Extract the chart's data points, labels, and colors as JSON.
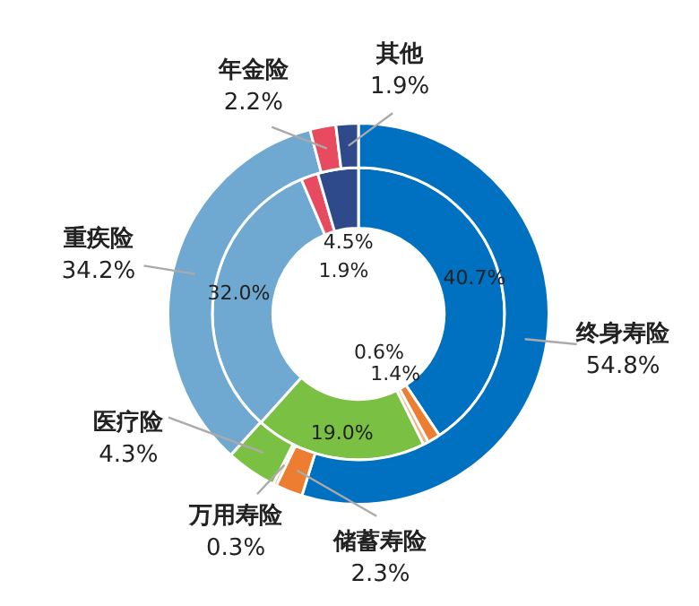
{
  "chart_data": {
    "type": "donut",
    "categories": [
      "终身寿险",
      "储蓄寿险",
      "万用寿险",
      "医疗险",
      "重疾险",
      "年金险",
      "其他"
    ],
    "colors": [
      "#0070c0",
      "#ed7d31",
      "#f4b183",
      "#7ac143",
      "#6fa8d0",
      "#e84a5f",
      "#2e4a8a"
    ],
    "series": [
      {
        "values": [
          54.8,
          2.3,
          0.3,
          4.3,
          34.2,
          2.2,
          1.9
        ],
        "value_labels": [
          "54.8%",
          "2.3%",
          "0.3%",
          "4.3%",
          "34.2%",
          "2.2%",
          "1.9%"
        ]
      },
      {
        "values": [
          40.7,
          1.4,
          0.6,
          19.0,
          32.0,
          1.9,
          4.5
        ],
        "value_labels": [
          "40.7%",
          "1.4%",
          "0.6%",
          "19.0%",
          "32.0%",
          "1.9%",
          "4.5%"
        ]
      }
    ],
    "legend": false
  }
}
